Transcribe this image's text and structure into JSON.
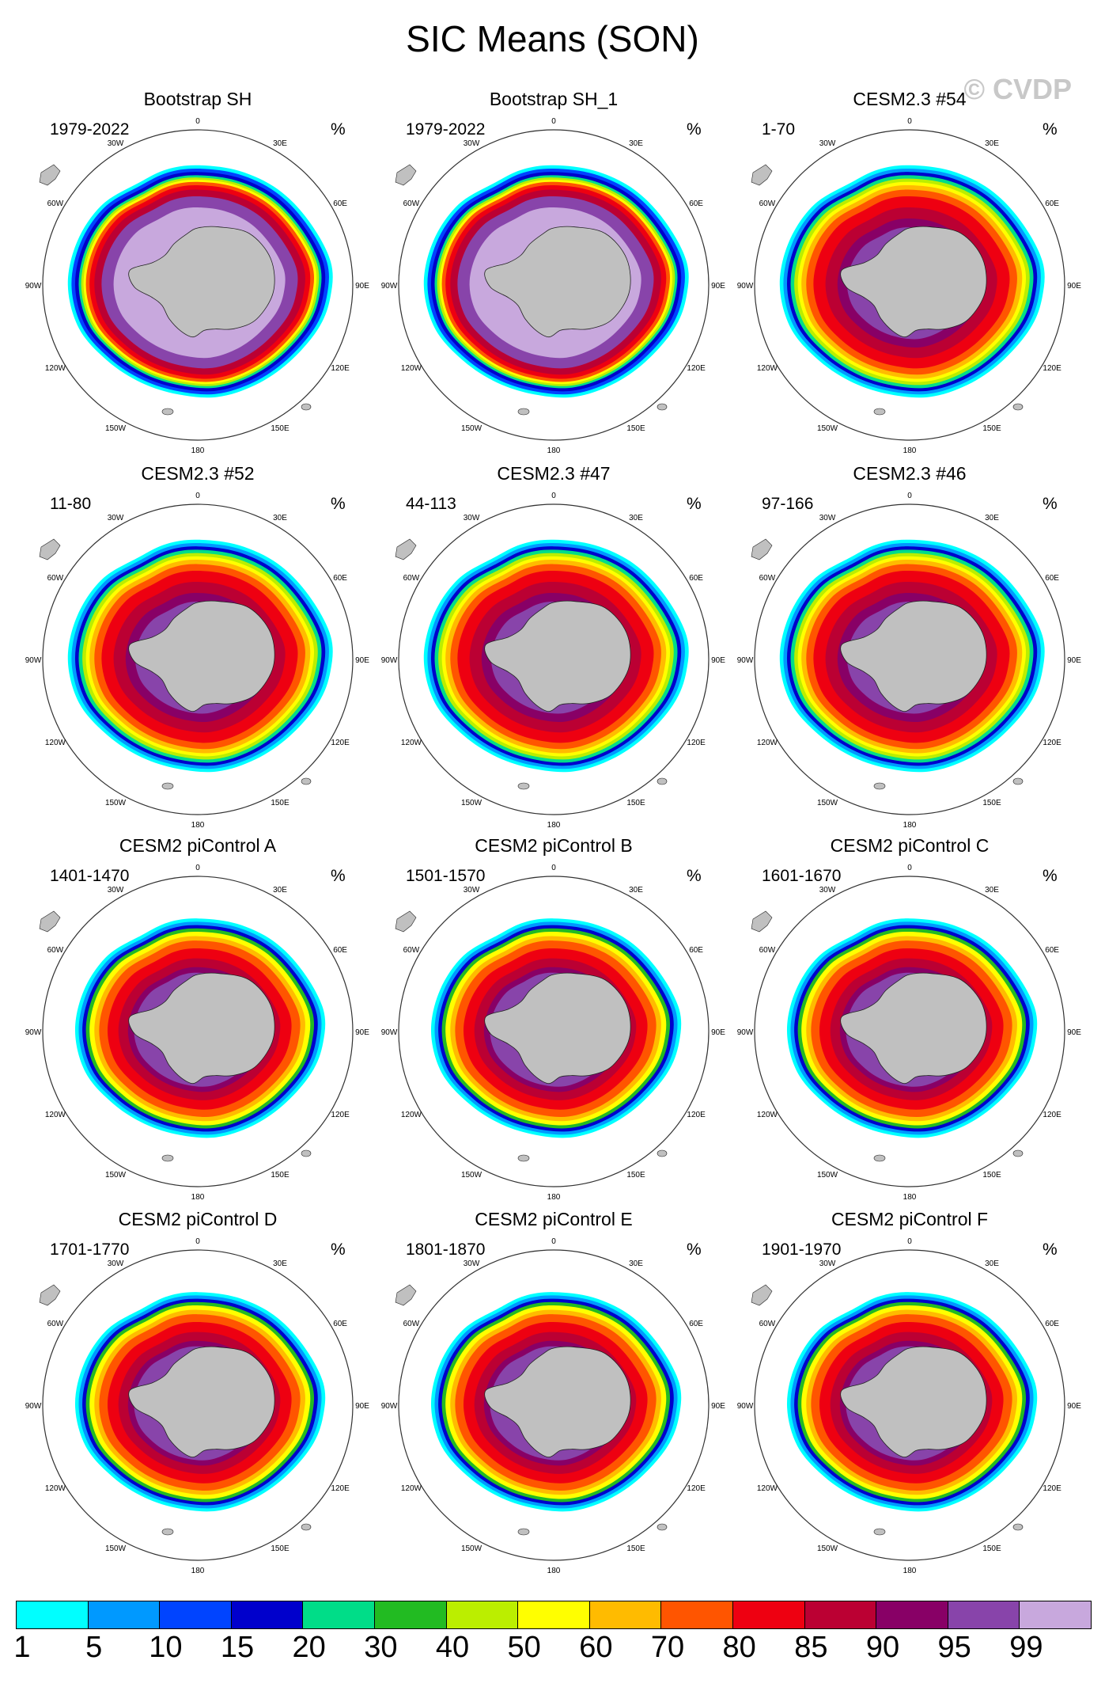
{
  "title": "SIC Means (SON)",
  "watermark": "© CVDP",
  "longitude_labels": [
    "0",
    "30E",
    "60E",
    "90E",
    "120E",
    "150E",
    "180",
    "150W",
    "120W",
    "90W",
    "60W",
    "30W"
  ],
  "panels": [
    {
      "title": "Bootstrap SH",
      "range": "1979-2022",
      "unit": "%",
      "style": "obs"
    },
    {
      "title": "Bootstrap SH_1",
      "range": "1979-2022",
      "unit": "%",
      "style": "obs"
    },
    {
      "title": "CESM2.3 #54",
      "range": "1-70",
      "unit": "%",
      "style": "model"
    },
    {
      "title": "CESM2.3 #52",
      "range": "11-80",
      "unit": "%",
      "style": "model"
    },
    {
      "title": "CESM2.3 #47",
      "range": "44-113",
      "unit": "%",
      "style": "model"
    },
    {
      "title": "CESM2.3 #46",
      "range": "97-166",
      "unit": "%",
      "style": "model"
    },
    {
      "title": "CESM2 piControl A",
      "range": "1401-1470",
      "unit": "%",
      "style": "control"
    },
    {
      "title": "CESM2 piControl B",
      "range": "1501-1570",
      "unit": "%",
      "style": "control"
    },
    {
      "title": "CESM2 piControl C",
      "range": "1601-1670",
      "unit": "%",
      "style": "control"
    },
    {
      "title": "CESM2 piControl D",
      "range": "1701-1770",
      "unit": "%",
      "style": "control"
    },
    {
      "title": "CESM2 piControl E",
      "range": "1801-1870",
      "unit": "%",
      "style": "control"
    },
    {
      "title": "CESM2 piControl F",
      "range": "1901-1970",
      "unit": "%",
      "style": "control"
    }
  ],
  "colorbar": {
    "colors": [
      "#00ffff",
      "#0099ff",
      "#0044ff",
      "#0000cc",
      "#00dd88",
      "#22bb22",
      "#bbee00",
      "#ffff00",
      "#ffbb00",
      "#ff5500",
      "#ee0011",
      "#bb0033",
      "#880066",
      "#8844aa",
      "#c8a8dd"
    ],
    "labels": [
      "1",
      "5",
      "10",
      "15",
      "20",
      "30",
      "40",
      "50",
      "60",
      "70",
      "80",
      "85",
      "90",
      "95",
      "99"
    ]
  }
}
